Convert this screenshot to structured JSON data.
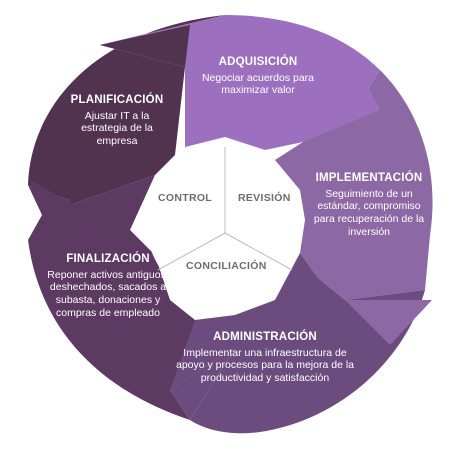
{
  "colors": {
    "planificacion": "#51334f",
    "adquisicion": "#9c70bf",
    "implementacion": "#8c68a4",
    "administracion": "#6c4c7f",
    "finalizacion": "#5d3a62",
    "center_fill": "#ffffff",
    "center_divider": "#bdbdbd",
    "center_text": "#6d6d6d"
  },
  "segments": {
    "planificacion": {
      "title": "PLANIFICACIÓN",
      "description": "Ajustar IT a la estrategia de la empresa"
    },
    "adquisicion": {
      "title": "ADQUISICIÓN",
      "description": "Negociar acuerdos para maximizar valor"
    },
    "implementacion": {
      "title": "IMPLEMENTACIÓN",
      "description": "Seguimiento de un estándar, compromiso para recuperación de la inversión"
    },
    "administracion": {
      "title": "ADMINISTRACIÓN",
      "description": "Implementar una infraestructura de apoyo y procesos para la mejora de la productividad y satisfacción"
    },
    "finalizacion": {
      "title": "FINALIZACIÓN",
      "description": "Reponer activos antiguos, deshechados, sacados a subasta, donaciones y compras de empleado"
    }
  },
  "center": {
    "control": "CONTROL",
    "revision": "REVISIÓN",
    "conciliacion": "CONCILIACIÓN"
  }
}
